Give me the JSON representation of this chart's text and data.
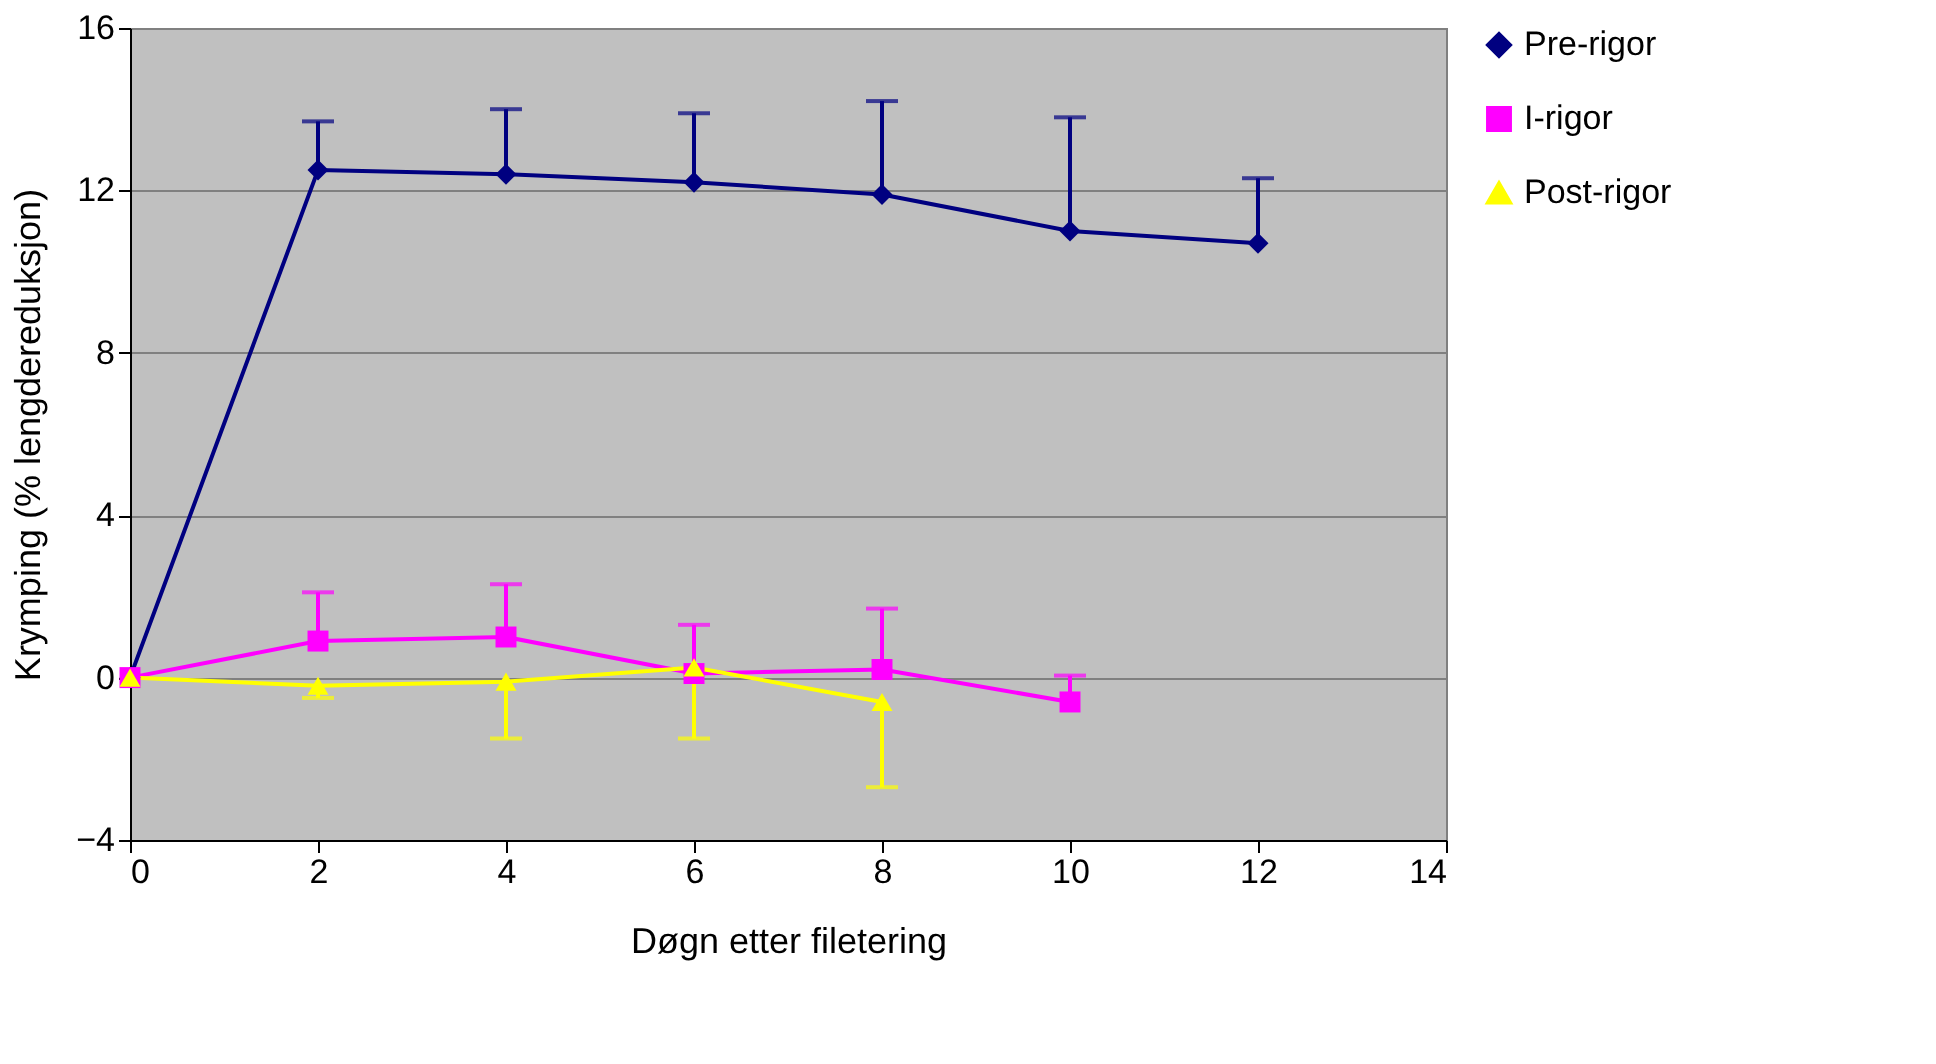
{
  "chart_data": {
    "type": "line",
    "xlabel": "Døgn etter filetering",
    "ylabel": "Krymping (% lengdereduksjon)",
    "x": [
      0,
      2,
      4,
      6,
      8,
      10,
      12
    ],
    "xlim": [
      0,
      14
    ],
    "xticks": [
      0,
      2,
      4,
      6,
      8,
      10,
      12,
      14
    ],
    "ylim": [
      -4,
      16
    ],
    "yticks": [
      -4,
      0,
      4,
      8,
      12,
      16
    ],
    "grid": "y",
    "legend": "top right",
    "series": [
      {
        "name": "Pre-rigor",
        "color": "#000080",
        "marker": "diamond",
        "values": [
          0,
          12.5,
          12.4,
          12.2,
          11.9,
          11.0,
          10.7
        ],
        "errors": [
          null,
          [
            12.5,
            13.7
          ],
          [
            12.4,
            14.0
          ],
          [
            12.2,
            13.9
          ],
          [
            11.9,
            14.2
          ],
          [
            11.0,
            13.8
          ],
          [
            10.7,
            12.3
          ]
        ]
      },
      {
        "name": "I-rigor",
        "color": "#ff00ff",
        "marker": "square",
        "values": [
          0,
          0.9,
          1.0,
          0.1,
          0.2,
          -0.6,
          null
        ],
        "errors": [
          null,
          [
            0.9,
            2.1
          ],
          [
            1.0,
            2.3
          ],
          [
            0.1,
            1.3
          ],
          [
            0.2,
            1.7
          ],
          [
            -0.6,
            0.05
          ],
          null
        ]
      },
      {
        "name": "Post-rigor",
        "color": "#ffff00",
        "marker": "triangle",
        "values": [
          0,
          -0.2,
          -0.1,
          0.25,
          -0.6,
          null,
          null
        ],
        "errors": [
          null,
          [
            -0.5,
            -0.2
          ],
          [
            -1.5,
            -0.1
          ],
          [
            -1.5,
            0.25
          ],
          [
            -2.7,
            -0.6
          ],
          null,
          null
        ]
      }
    ]
  }
}
